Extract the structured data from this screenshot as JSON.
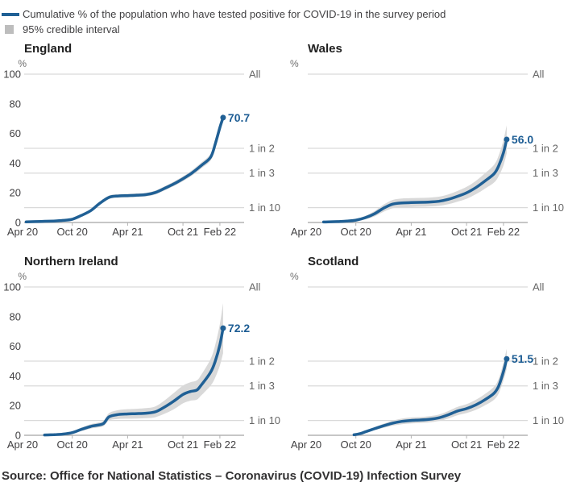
{
  "legend": {
    "line_label": "Cumulative % of the population who have tested positive for COVID-19 in the survey period",
    "band_label": "95% credible interval"
  },
  "source": "Source: Office for National Statistics – Coronavirus (COVID-19) Infection Survey",
  "colors": {
    "line": "#206095",
    "band": "#d9d9d9",
    "legend_band_swatch": "#bdbdbd",
    "grid": "#d9d9d9",
    "axis": "#b3b3b3",
    "tick_label": "#414042",
    "ratio_label": "#666666",
    "unit_label": "#6e6e6e",
    "value_label": "#1d5d94",
    "title": "#212121"
  },
  "chart_data": {
    "type": "line",
    "title": "Cumulative % of the population who have tested positive for COVID-19 in the survey period",
    "band_name": "95% credible interval",
    "x_unit": "months since Apr 2020",
    "y_unit": "%",
    "ylim": [
      0,
      100
    ],
    "grid": "horizontal-ratio-lines-only",
    "x_tick_labels": [
      "Apr 20",
      "Oct 20",
      "Apr 21",
      "Oct 21",
      "Feb 22"
    ],
    "x_tick_months": [
      0,
      6,
      12,
      18,
      22
    ],
    "y_tick_values": [
      0,
      20,
      40,
      60,
      80,
      100
    ],
    "ratio_gridlines": [
      {
        "value": 100,
        "label": "All"
      },
      {
        "value": 50,
        "label": "1 in 2"
      },
      {
        "value": 33.3,
        "label": "1 in 3"
      },
      {
        "value": 10,
        "label": "1 in 10"
      }
    ],
    "panels": [
      {
        "title": "England",
        "final_value": 70.7,
        "final_label": "70.7",
        "show_y_axis_labels": true,
        "series": {
          "months": [
            1,
            2,
            3,
            4,
            5,
            6,
            7,
            8,
            9,
            10,
            11,
            12,
            13,
            14,
            15,
            16,
            17,
            18,
            19,
            20,
            21,
            21.5,
            22,
            22.35
          ],
          "values": [
            0.4,
            0.6,
            0.8,
            1.0,
            1.4,
            2.2,
            4.8,
            8,
            13,
            17,
            17.9,
            18.1,
            18.4,
            18.8,
            20.2,
            23,
            26,
            29.5,
            33.5,
            38.5,
            44,
            53,
            64,
            70.7
          ],
          "lower": [
            0.1,
            0.3,
            0.5,
            0.6,
            1.0,
            1.7,
            4.1,
            7.1,
            11.9,
            15.8,
            16.7,
            16.9,
            17.2,
            17.6,
            18.9,
            21.6,
            24.5,
            27.9,
            31.7,
            36.5,
            41.8,
            50.5,
            61.2,
            67.7
          ],
          "upper": [
            0.7,
            0.9,
            1.1,
            1.4,
            1.8,
            2.7,
            5.5,
            8.9,
            14.1,
            18.2,
            19.1,
            19.3,
            19.6,
            20.0,
            21.5,
            24.4,
            27.5,
            31.1,
            35.3,
            40.5,
            46.2,
            55.5,
            66.8,
            73.7
          ]
        }
      },
      {
        "title": "Wales",
        "final_value": 56.0,
        "final_label": "56.0",
        "show_y_axis_labels": false,
        "series": {
          "months": [
            2.5,
            3,
            4,
            5,
            6,
            7,
            8,
            9,
            10,
            11,
            12,
            13,
            14,
            15,
            16,
            17,
            18,
            19,
            20,
            21,
            21.5,
            22,
            22.35
          ],
          "values": [
            0.3,
            0.4,
            0.6,
            0.9,
            1.6,
            3.2,
            5.8,
            9.6,
            12.4,
            13.2,
            13.4,
            13.6,
            13.8,
            14.3,
            15.6,
            17.6,
            20,
            23.5,
            28,
            33,
            38.5,
            47,
            56
          ],
          "lower": [
            0.1,
            0.1,
            0.2,
            0.4,
            0.8,
            2.0,
            4.0,
            7.2,
            9.6,
            10.2,
            10.4,
            10.6,
            10.8,
            11.2,
            12.3,
            14.0,
            16.0,
            19.0,
            22.8,
            27.0,
            31.5,
            38.5,
            46.5
          ],
          "upper": [
            0.5,
            0.7,
            1.0,
            1.4,
            2.4,
            4.4,
            7.6,
            12.0,
            15.2,
            16.2,
            16.4,
            16.6,
            16.8,
            17.4,
            18.9,
            21.2,
            24.0,
            28.0,
            33.2,
            39.0,
            45.5,
            55.5,
            65.5
          ]
        }
      },
      {
        "title": "Northern Ireland",
        "final_value": 72.2,
        "final_label": "72.2",
        "show_y_axis_labels": true,
        "series": {
          "months": [
            3,
            4,
            5,
            6,
            7,
            8,
            8.7,
            9.4,
            10,
            11,
            12,
            13,
            14,
            15,
            16,
            17,
            18,
            18.8,
            19.5,
            20,
            21,
            21.5,
            22,
            22.35
          ],
          "values": [
            0.2,
            0.4,
            0.8,
            1.8,
            4,
            6,
            6.8,
            8,
            12.5,
            14,
            14.4,
            14.6,
            14.9,
            15.8,
            19,
            23,
            27.5,
            29.5,
            30.5,
            34,
            42.5,
            50,
            61,
            72.2
          ],
          "lower": [
            0.0,
            0.1,
            0.3,
            1.0,
            2.8,
            4.5,
            5.2,
            6.2,
            10.0,
            11.0,
            11.2,
            11.3,
            11.5,
            12.2,
            14.5,
            17.5,
            21.5,
            23.3,
            24.0,
            27.0,
            33.5,
            39.0,
            47.0,
            55.2
          ],
          "upper": [
            0.4,
            0.7,
            1.3,
            2.6,
            5.2,
            7.5,
            8.4,
            9.8,
            15.0,
            17.0,
            17.6,
            17.9,
            18.3,
            19.4,
            23.5,
            28.5,
            33.5,
            35.7,
            37.0,
            41.0,
            51.5,
            61.0,
            75.0,
            89.2
          ]
        }
      },
      {
        "title": "Scotland",
        "final_value": 51.5,
        "final_label": "51.5",
        "show_y_axis_labels": false,
        "series": {
          "months": [
            5.8,
            6.5,
            7,
            8,
            9,
            10,
            11,
            12,
            13,
            14,
            15,
            16,
            17,
            18,
            19,
            20,
            21,
            21.5,
            22,
            22.35
          ],
          "values": [
            0.3,
            1.2,
            2.3,
            4.4,
            6.4,
            8.2,
            9.4,
            10,
            10.3,
            10.8,
            11.8,
            13.8,
            16.3,
            18,
            20.5,
            24,
            28.5,
            33.5,
            43,
            51.5
          ],
          "lower": [
            0.1,
            0.8,
            1.7,
            3.4,
            5.0,
            6.5,
            7.5,
            8.0,
            8.3,
            8.7,
            9.6,
            11.3,
            13.5,
            15.0,
            17.1,
            20.2,
            24.1,
            28.5,
            37.0,
            44.7
          ],
          "upper": [
            0.5,
            1.6,
            2.9,
            5.4,
            7.8,
            9.9,
            11.3,
            12.0,
            12.3,
            12.9,
            14.0,
            16.3,
            19.1,
            21.0,
            23.9,
            27.8,
            32.9,
            38.5,
            49.0,
            58.3
          ]
        }
      }
    ]
  }
}
